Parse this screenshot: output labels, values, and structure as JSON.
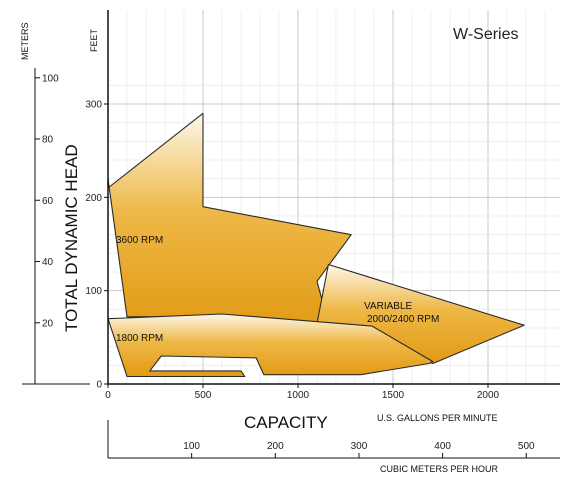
{
  "chart_data": {
    "type": "area",
    "title": "W-Series",
    "xlabel": "CAPACITY",
    "xunit_primary": "U.S. GALLONS PER MINUTE",
    "xunit_secondary": "CUBIC METERS PER HOUR",
    "ylabel": "TOTAL DYNAMIC HEAD",
    "yunit_primary": "FEET",
    "yunit_secondary": "METERS",
    "xlim": [
      0,
      2400
    ],
    "ylim": [
      0,
      330
    ],
    "x_ticks": [
      0,
      500,
      1000,
      1500,
      2000
    ],
    "x_ticks_secondary": [
      100,
      200,
      300,
      400,
      500
    ],
    "y_ticks": [
      0,
      100,
      200,
      300
    ],
    "y_ticks_secondary": [
      20,
      40,
      60,
      80,
      100
    ],
    "grid": true,
    "fill_color": "#e6a21c",
    "series": [
      {
        "name": "3600 RPM",
        "x": [
          0,
          0,
          500,
          500,
          1280,
          1100,
          1160,
          1110,
          600,
          100
        ],
        "y": [
          220,
          210,
          290,
          190,
          160,
          110,
          65,
          57,
          72,
          72
        ]
      },
      {
        "name": "VARIABLE 2000/2400 RPM",
        "x": [
          1160,
          2190,
          1710,
          1100,
          1160
        ],
        "y": [
          128,
          63,
          22,
          65,
          128
        ]
      },
      {
        "name": "1800 RPM",
        "x": [
          0,
          600,
          1390,
          1710,
          1690,
          1330,
          820,
          780,
          280,
          220,
          700,
          720,
          100,
          0
        ],
        "y": [
          70,
          75,
          62,
          24,
          22,
          10,
          10,
          28,
          30,
          14,
          14,
          8,
          8,
          70
        ]
      }
    ]
  }
}
